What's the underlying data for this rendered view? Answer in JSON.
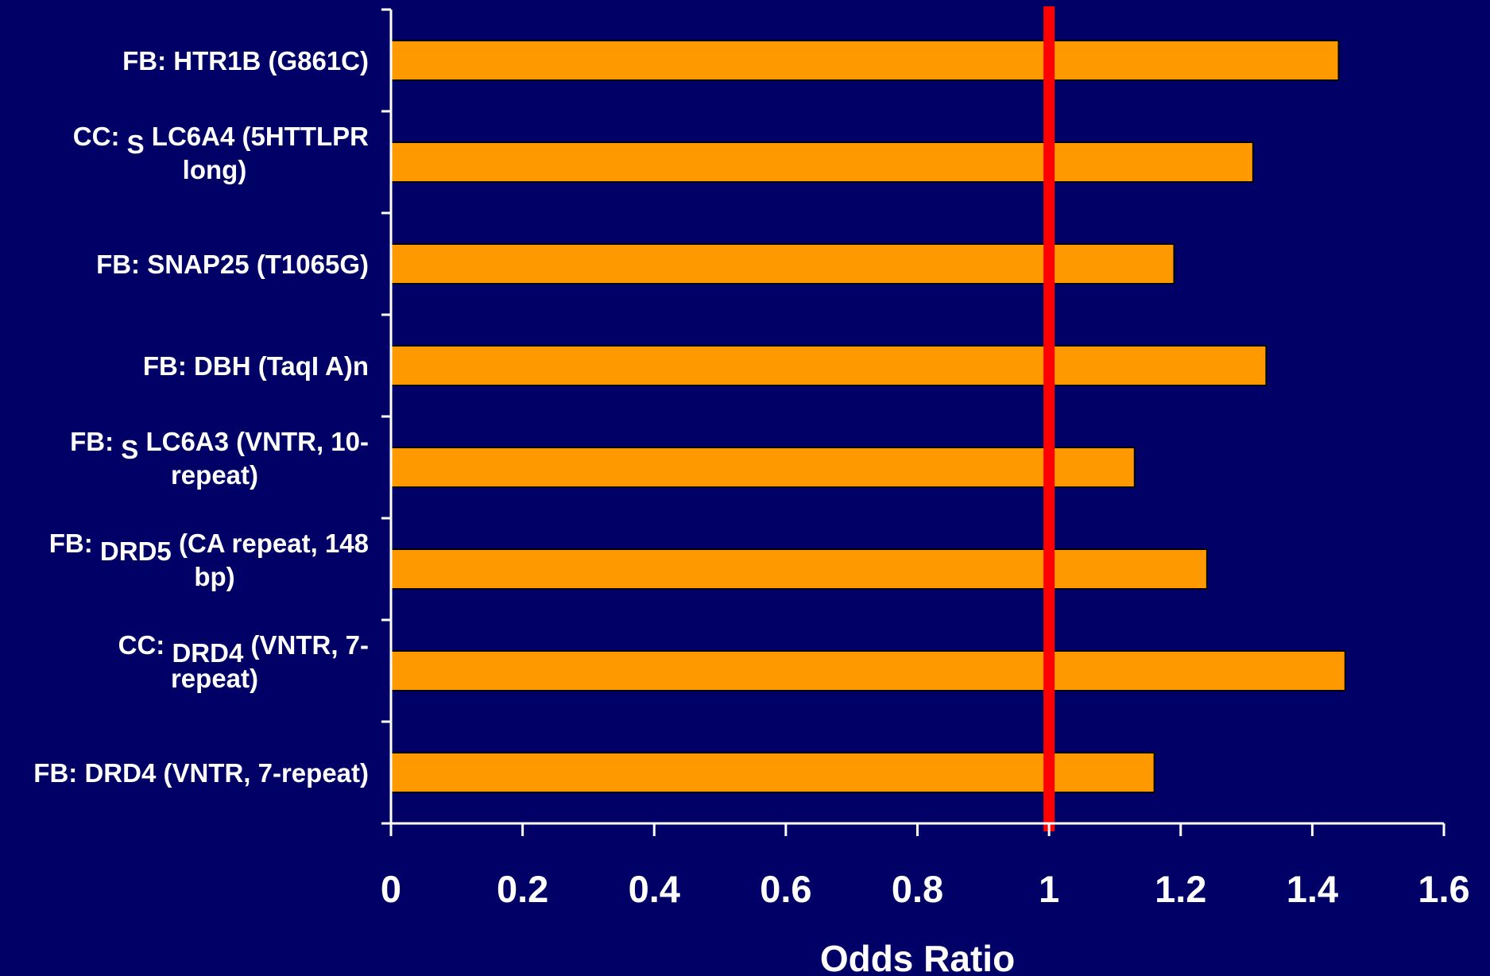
{
  "chart_data": {
    "type": "bar",
    "orientation": "horizontal",
    "categories": [
      {
        "text": "FB: HTR1B (G861C)",
        "parts": [
          {
            "text": "FB: HTR1B (G861C)",
            "dy": 0
          }
        ]
      },
      {
        "text": "CC: S LC6A4 (5HTTLPR long)",
        "parts": [
          {
            "text": "CC: ",
            "dy": 0
          },
          {
            "text": "S",
            "dy": 10
          },
          {
            "text": " LC6A4 (5HTTLPR",
            "dy": 0
          }
        ],
        "line2": "long)"
      },
      {
        "text": "FB: SNAP25 (T1065G)",
        "parts": [
          {
            "text": "FB: SNAP25 (T1065G)",
            "dy": 0
          }
        ]
      },
      {
        "text": "FB: DBH (TaqI A)n",
        "parts": [
          {
            "text": "FB: DBH (TaqI A)n",
            "dy": 0
          }
        ]
      },
      {
        "text": "FB: S LC6A3 (VNTR, 10-repeat)",
        "parts": [
          {
            "text": "FB: ",
            "dy": 0
          },
          {
            "text": "S",
            "dy": 10
          },
          {
            "text": " LC6A3 (VNTR, 10-",
            "dy": 0
          }
        ],
        "line2": "repeat)"
      },
      {
        "text": "FB: DRD5 (CA repeat, 148 bp)",
        "parts": [
          {
            "text": "FB: ",
            "dy": 0
          },
          {
            "text": "DRD5",
            "dy": 10
          },
          {
            "text": "  (CA repeat, 148",
            "dy": 0
          }
        ],
        "line2": "bp)"
      },
      {
        "text": "CC: DRD4 (VNTR, 7-repeat)",
        "parts": [
          {
            "text": "CC: ",
            "dy": 0
          },
          {
            "text": "DRD4",
            "dy": 10
          },
          {
            "text": "  (VNTR, 7-",
            "dy": 0
          }
        ],
        "line2": "repeat)"
      },
      {
        "text": "FB: DRD4 (VNTR, 7-repeat)",
        "parts": [
          {
            "text": "FB: DRD4 (VNTR, 7-repeat)",
            "dy": 0
          }
        ]
      }
    ],
    "values": [
      1.44,
      1.31,
      1.19,
      1.33,
      1.13,
      1.24,
      1.45,
      1.16
    ],
    "xlabel": "Odds Ratio",
    "xlim": [
      0,
      1.6
    ],
    "xticks": [
      "0",
      "0.2",
      "0.4",
      "0.6",
      "0.8",
      "1",
      "1.2",
      "1.4",
      "1.6"
    ],
    "reference_line": 1,
    "grid": false,
    "colors": {
      "background": "#000066",
      "bar_fill": "#ff9900",
      "bar_stroke": "#000000",
      "reference_line": "#ff0000",
      "axis": "#ffffff",
      "text": "#ffffff"
    }
  }
}
